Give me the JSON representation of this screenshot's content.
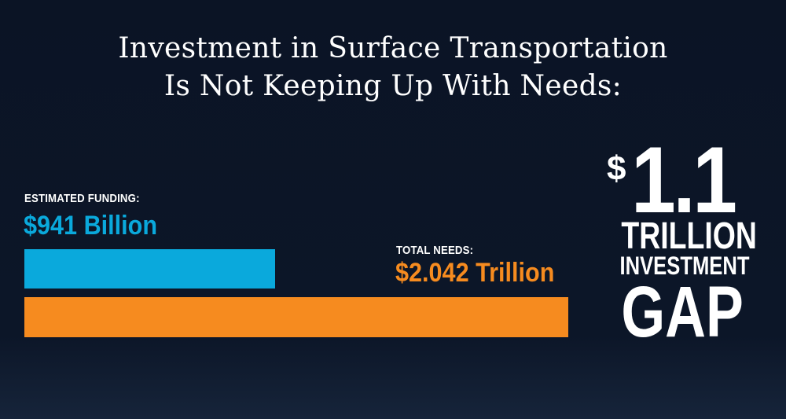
{
  "title_line1": "Investment in Surface Transportation",
  "title_line2": "Is Not Keeping Up With Needs:",
  "chart_data": {
    "type": "bar",
    "orientation": "horizontal",
    "categories": [
      "ESTIMATED FUNDING:",
      "TOTAL NEEDS:"
    ],
    "values": [
      941,
      2042
    ],
    "value_labels": [
      "$941 Billion",
      "$2.042 Trillion"
    ],
    "unit": "billion USD",
    "colors": [
      "#0aa9dc",
      "#f68b1f"
    ],
    "xlim": [
      0,
      2042
    ],
    "grid": false
  },
  "gap": {
    "dollar": "$",
    "amount": "1.1",
    "unit": "TRILLION",
    "subtitle": "INVESTMENT",
    "word": "GAP"
  },
  "colors": {
    "background": "#0c1526",
    "funding": "#0aa9dc",
    "needs": "#f68b1f",
    "text": "#ffffff"
  }
}
